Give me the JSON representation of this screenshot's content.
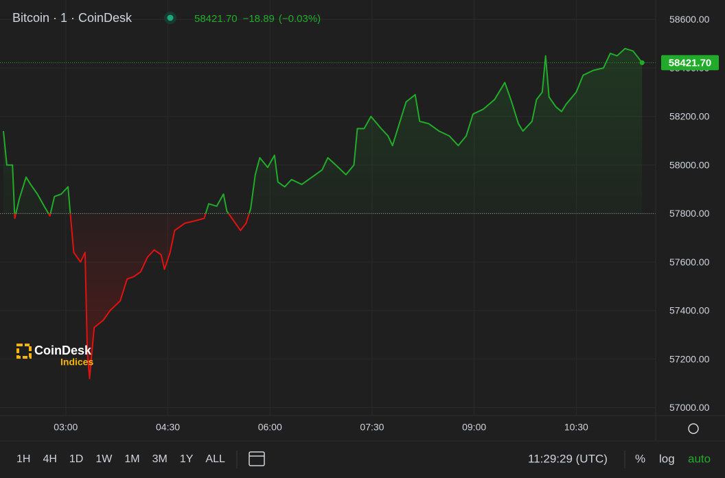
{
  "chart_data": {
    "type": "line",
    "title": "Bitcoin · 1 · CoinDesk",
    "last_price": {
      "value": 58421.7,
      "label": "58421.70"
    },
    "change": "−18.89",
    "change_percent": "(−0.03%)",
    "baseline": 57800,
    "x": [
      125,
      128,
      133,
      135,
      139,
      145,
      149,
      155,
      161,
      166,
      170,
      176,
      182,
      184,
      187,
      193,
      197,
      199,
      201,
      205,
      213,
      219,
      228,
      234,
      240,
      246,
      252,
      258,
      264,
      267,
      272,
      276,
      285,
      294,
      302,
      306,
      313,
      319,
      322,
      328,
      334,
      339,
      343,
      347,
      351,
      358,
      364,
      367,
      373,
      379,
      388,
      397,
      406,
      411,
      418,
      427,
      434,
      437,
      443,
      449,
      458,
      464,
      468,
      476,
      480,
      488,
      492,
      500,
      509,
      518,
      526,
      533,
      539,
      548,
      558,
      567,
      573,
      579,
      583,
      591,
      595,
      600,
      603,
      606,
      612,
      617,
      621,
      630,
      636,
      645,
      654,
      660,
      666,
      673,
      680,
      685,
      688
    ],
    "series": [
      {
        "name": "Bitcoin",
        "color": "#22ab2b",
        "below_color": "#e0120f",
        "values": [
          58140,
          58000,
          58000,
          57780,
          57860,
          57950,
          57920,
          57880,
          57830,
          57790,
          57870,
          57880,
          57910,
          57800,
          57640,
          57600,
          57640,
          57230,
          57120,
          57330,
          57360,
          57400,
          57440,
          57530,
          57540,
          57560,
          57620,
          57650,
          57630,
          57570,
          57640,
          57730,
          57760,
          57770,
          57780,
          57840,
          57830,
          57880,
          57810,
          57770,
          57730,
          57760,
          57820,
          57960,
          58030,
          57990,
          58040,
          57930,
          57910,
          57940,
          57920,
          57950,
          57980,
          58030,
          58000,
          57960,
          58000,
          58150,
          58150,
          58200,
          58150,
          58120,
          58080,
          58200,
          58260,
          58290,
          58180,
          58170,
          58140,
          58120,
          58080,
          58120,
          58210,
          58230,
          58270,
          58340,
          58260,
          58170,
          58140,
          58180,
          58270,
          58300,
          58450,
          58280,
          58240,
          58220,
          58250,
          58300,
          58370,
          58390,
          58400,
          58460,
          58450,
          58480,
          58470,
          58440,
          58421.7
        ]
      }
    ],
    "xlim": [
      122,
      700
    ],
    "ylim": [
      56970,
      58680
    ],
    "xticks": [
      {
        "value": 180,
        "label": "03:00"
      },
      {
        "value": 270,
        "label": "04:30"
      },
      {
        "value": 360,
        "label": "06:00"
      },
      {
        "value": 450,
        "label": "07:30"
      },
      {
        "value": 540,
        "label": "09:00"
      },
      {
        "value": 630,
        "label": "10:30"
      }
    ],
    "yticks": [
      {
        "value": 57000,
        "label": "57000.00"
      },
      {
        "value": 57200,
        "label": "57200.00"
      },
      {
        "value": 57400,
        "label": "57400.00"
      },
      {
        "value": 57600,
        "label": "57600.00"
      },
      {
        "value": 57800,
        "label": "57800.00"
      },
      {
        "value": 58000,
        "label": "58000.00"
      },
      {
        "value": 58200,
        "label": "58200.00"
      },
      {
        "value": 58400,
        "label": "58400.00"
      },
      {
        "value": 58600,
        "label": "58600.00"
      }
    ],
    "grid": true
  },
  "logo": {
    "name": "CoinDesk",
    "subtitle": "Indices"
  },
  "toolbar": {
    "ranges": [
      "1H",
      "4H",
      "1D",
      "1W",
      "1M",
      "3M",
      "1Y",
      "ALL"
    ],
    "clock": "11:29:29 (UTC)",
    "scale_options": [
      "%",
      "log",
      "auto"
    ]
  }
}
